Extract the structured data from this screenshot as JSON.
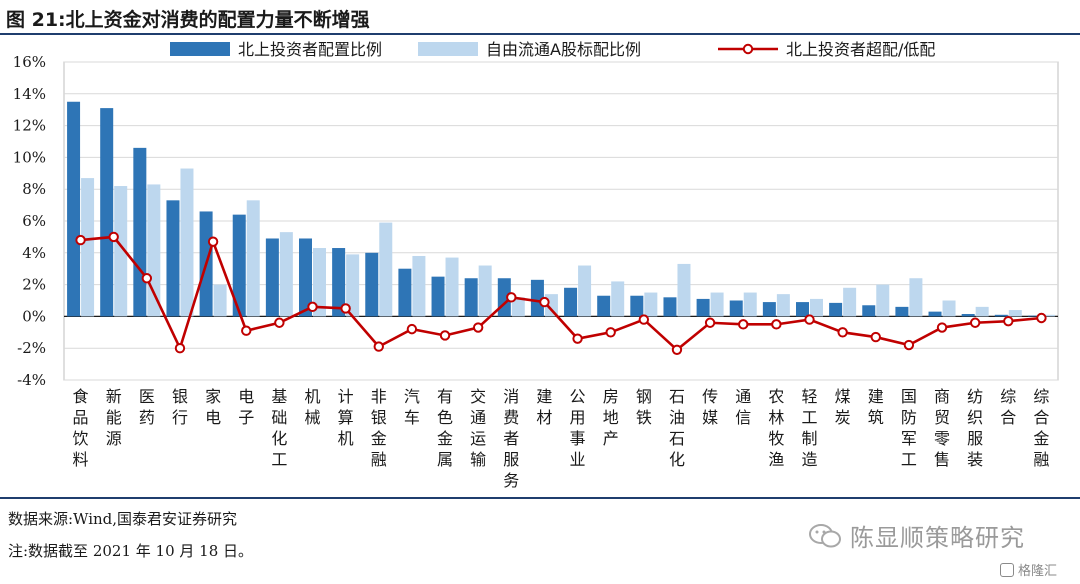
{
  "figure": {
    "title": "图 21:北上资金对消费的配置力量不断增强",
    "source": "数据来源:Wind,国泰君安证券研究",
    "note": "注:数据截至 2021 年 10 月 18 日。",
    "watermark": "陈显顺策略研究",
    "badge": "格隆汇"
  },
  "colors": {
    "series_dark": "#2e75b6",
    "series_light": "#bdd7ee",
    "series_line": "#c00000",
    "grid": "#d9d9d9",
    "rule": "#1f3e6e"
  },
  "chart_data": {
    "type": "bar",
    "categories": [
      "食品饮料",
      "新能源",
      "医药",
      "银行",
      "家电",
      "电子",
      "基础化工",
      "机械",
      "计算机",
      "非银金融",
      "汽车",
      "有色金属",
      "交通运输",
      "消费者服务",
      "建材",
      "公用事业",
      "房地产",
      "钢铁",
      "石油石化",
      "传媒",
      "通信",
      "农林牧渔",
      "轻工制造",
      "煤炭",
      "建筑",
      "国防军工",
      "商贸零售",
      "纺织服装",
      "综合",
      "综合金融"
    ],
    "series": [
      {
        "name": "北上投资者配置比例",
        "type": "bar",
        "values": [
          13.5,
          13.1,
          10.6,
          7.3,
          6.6,
          6.4,
          4.9,
          4.9,
          4.3,
          4.0,
          3.0,
          2.5,
          2.4,
          2.4,
          2.3,
          1.8,
          1.3,
          1.3,
          1.2,
          1.1,
          1.0,
          0.9,
          0.9,
          0.85,
          0.7,
          0.6,
          0.3,
          0.15,
          0.1,
          0.05
        ]
      },
      {
        "name": "自由流通A股标配比例",
        "type": "bar",
        "values": [
          8.7,
          8.2,
          8.3,
          9.3,
          2.0,
          7.3,
          5.3,
          4.3,
          3.9,
          5.9,
          3.8,
          3.7,
          3.2,
          1.2,
          1.4,
          3.2,
          2.2,
          1.5,
          3.3,
          1.5,
          1.5,
          1.4,
          1.1,
          1.8,
          2.0,
          2.4,
          1.0,
          0.6,
          0.4,
          0.1
        ]
      },
      {
        "name": "北上投资者超配/低配",
        "type": "line",
        "values": [
          4.8,
          5.0,
          2.4,
          -2.0,
          4.7,
          -0.9,
          -0.4,
          0.6,
          0.5,
          -1.9,
          -0.8,
          -1.2,
          -0.7,
          1.2,
          0.9,
          -1.4,
          -1.0,
          -0.2,
          -2.1,
          -0.4,
          -0.5,
          -0.5,
          -0.2,
          -1.0,
          -1.3,
          -1.8,
          -0.7,
          -0.4,
          -0.3,
          -0.1
        ]
      }
    ],
    "xlabel": "",
    "ylabel": "",
    "ylim": [
      -4,
      16
    ],
    "yticks": [
      "-4%",
      "-2%",
      "0%",
      "2%",
      "4%",
      "6%",
      "8%",
      "10%",
      "12%",
      "14%",
      "16%"
    ],
    "grid": true,
    "legend_position": "top"
  }
}
